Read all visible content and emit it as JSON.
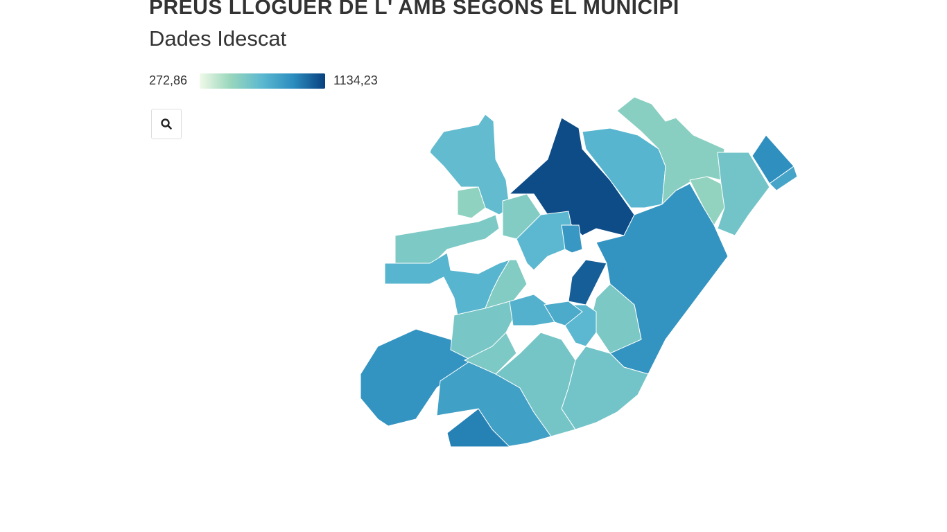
{
  "header": {
    "title": "PREUS LLOGUER DE L' AMB SEGONS EL MUNICIPI",
    "subtitle": "Dades Idescat"
  },
  "legend": {
    "min": {
      "value": 272.86,
      "label": "272,86"
    },
    "max": {
      "value": 1134.23,
      "label": "1134,23"
    },
    "colorscale": [
      "#f0f9e8",
      "#97d6bc",
      "#5bb8d0",
      "#2b8cbe",
      "#08407e"
    ]
  },
  "regions": {
    "values": [
      680,
      520,
      1100,
      720,
      540,
      510,
      620,
      900,
      800,
      880,
      560,
      700,
      1050,
      860,
      580,
      720,
      560,
      880,
      600,
      740,
      820,
      950,
      610,
      580,
      620,
      590,
      700,
      770
    ]
  }
}
